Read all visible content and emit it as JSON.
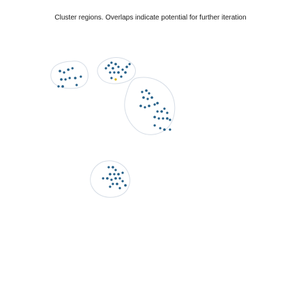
{
  "caption": "Cluster regions. Overlaps indicate potential for further iteration",
  "colors": {
    "point": "#1f5c86",
    "point_accent": "#d4b000",
    "region_stroke": "#d6dde6"
  },
  "regions": [
    {
      "name": "cluster-region-a",
      "points": 12
    },
    {
      "name": "cluster-region-b",
      "points": 16
    },
    {
      "name": "cluster-region-c",
      "points": 24
    },
    {
      "name": "cluster-region-d",
      "points": 18
    }
  ]
}
